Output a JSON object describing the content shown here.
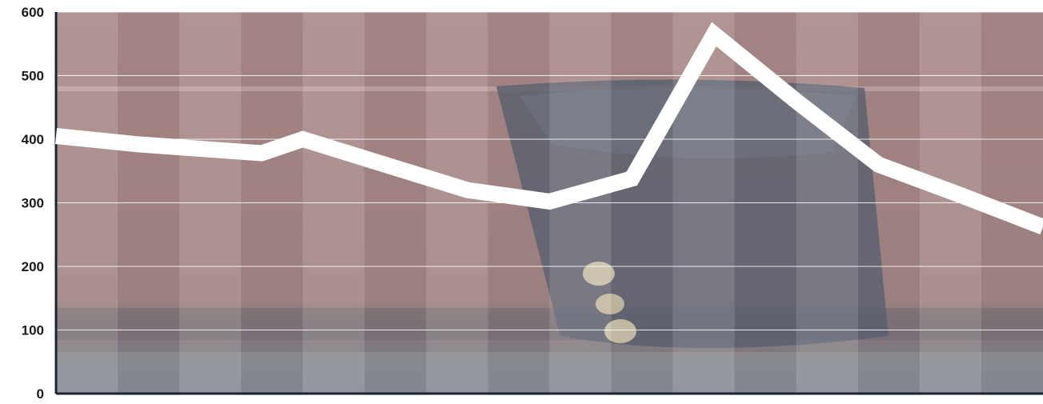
{
  "chart_data": {
    "type": "line",
    "title": "",
    "xlabel": "",
    "ylabel": "",
    "ylim": [
      0,
      600
    ],
    "yticks": [
      0,
      100,
      200,
      300,
      400,
      500,
      600
    ],
    "grid": "horizontal",
    "x": [
      0,
      1,
      2,
      3,
      4,
      5,
      6,
      7,
      8,
      9,
      10,
      11,
      12,
      13,
      14,
      15,
      16
    ],
    "series": [
      {
        "values": [
          405,
          392,
          378,
          400,
          360,
          320,
          302,
          338,
          565,
          460,
          360,
          312,
          262
        ],
        "x": [
          0,
          1,
          2.5,
          3,
          4,
          5,
          6,
          7,
          8,
          9,
          10,
          11,
          12
        ]
      }
    ],
    "line_color": "#ffffff",
    "background_photo": "brick wall with dark hat",
    "band_colors": [
      "#a98a8a",
      "#b59a99"
    ]
  }
}
